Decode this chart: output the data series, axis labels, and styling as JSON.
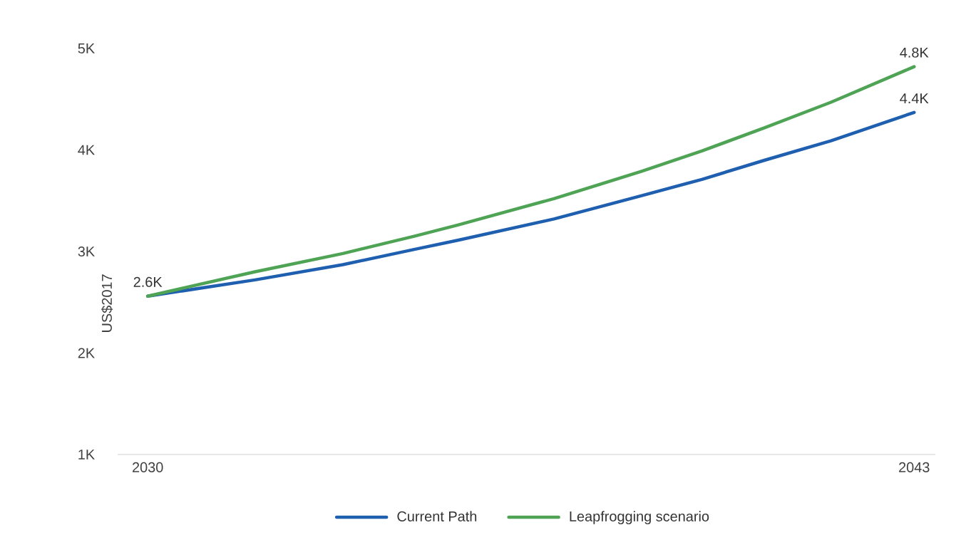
{
  "chart_data": {
    "type": "line",
    "ylabel": "US$2017",
    "marker": "none",
    "line_style": "solid",
    "legend": "bottom",
    "xlim": [
      2029.49,
      2043.36
    ],
    "xticks": [
      2030,
      2043
    ],
    "ylim": [
      1,
      5
    ],
    "yticks": [
      {
        "value": 1,
        "label": "1K"
      },
      {
        "value": 2,
        "label": "2K"
      },
      {
        "value": 3,
        "label": "3K"
      },
      {
        "value": 4,
        "label": "4K"
      },
      {
        "value": 5,
        "label": "5K"
      }
    ],
    "x": [
      2030,
      2031.82,
      2033.31,
      2034.52,
      2035.26,
      2036.89,
      2038.38,
      2039.4,
      2040.47,
      2041.59,
      2043
    ],
    "series": [
      {
        "name": "Current Path",
        "color": "#1f5fb0",
        "values": [
          2.56,
          2.72,
          2.87,
          3.02,
          3.11,
          3.32,
          3.55,
          3.71,
          3.9,
          4.09,
          4.37
        ],
        "value_labels": [
          null,
          null,
          null,
          null,
          null,
          null,
          null,
          null,
          null,
          null,
          "4.4K"
        ]
      },
      {
        "name": "Leapfrogging scenario",
        "color": "#4ea454",
        "values": [
          2.56,
          2.8,
          2.98,
          3.15,
          3.26,
          3.52,
          3.79,
          3.99,
          4.22,
          4.47,
          4.82
        ],
        "value_labels": [
          "2.6K",
          null,
          null,
          null,
          null,
          null,
          null,
          null,
          null,
          null,
          "4.8K"
        ]
      }
    ]
  }
}
